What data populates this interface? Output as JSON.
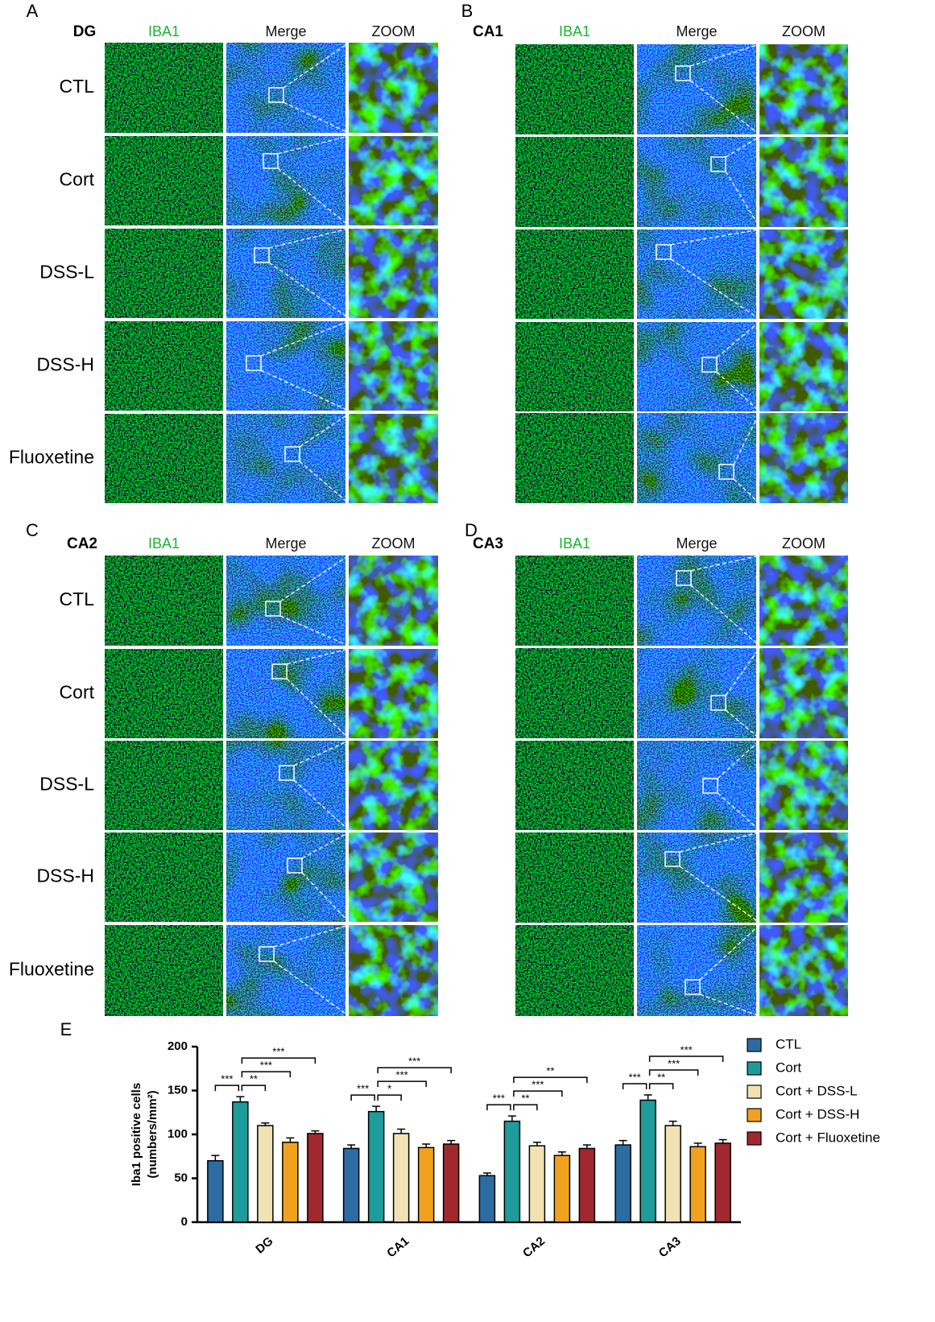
{
  "panels": [
    {
      "letter": "A",
      "region": "DG",
      "columns": [
        "IBA1",
        "Merge",
        "ZOOM"
      ],
      "rows": [
        "CTL",
        "Cort",
        "DSS-L",
        "DSS-H",
        "Fluoxetine"
      ]
    },
    {
      "letter": "B",
      "region": "CA1",
      "columns": [
        "IBA1",
        "Merge",
        "ZOOM"
      ]
    },
    {
      "letter": "C",
      "region": "CA2",
      "columns": [
        "IBA1",
        "Merge",
        "ZOOM"
      ],
      "rows": [
        "CTL",
        "Cort",
        "DSS-L",
        "DSS-H",
        "Fluoxetine"
      ]
    },
    {
      "letter": "D",
      "region": "CA3",
      "columns": [
        "IBA1",
        "Merge",
        "ZOOM"
      ]
    }
  ],
  "chart_data": {
    "type": "bar",
    "letter": "E",
    "y_label": "Iba1 positive cells",
    "y_label_unit": "(numbers/mm²)",
    "categories": [
      "DG",
      "CA1",
      "CA2",
      "CA3"
    ],
    "series": [
      {
        "name": "CTL",
        "color": "#2b6ca3",
        "values": [
          70,
          84,
          53,
          88
        ],
        "errors": [
          6,
          4,
          3,
          5
        ]
      },
      {
        "name": "Cort",
        "color": "#1e9b9b",
        "values": [
          137,
          126,
          115,
          139
        ],
        "errors": [
          6,
          6,
          6,
          6
        ]
      },
      {
        "name": "Cort + DSS-L",
        "color": "#f1e2b3",
        "values": [
          110,
          101,
          87,
          110
        ],
        "errors": [
          3,
          5,
          4,
          5
        ]
      },
      {
        "name": "Cort + DSS-H",
        "color": "#f0a21e",
        "values": [
          91,
          85,
          76,
          86
        ],
        "errors": [
          5,
          4,
          4,
          4
        ]
      },
      {
        "name": "Cort + Fluoxetine",
        "color": "#a1282e",
        "values": [
          101,
          89,
          84,
          90
        ],
        "errors": [
          3,
          4,
          4,
          4
        ]
      }
    ],
    "significance": [
      [
        "***",
        "**",
        "***",
        "***"
      ],
      [
        "***",
        "*",
        "***",
        "***"
      ],
      [
        "***",
        "**",
        "***",
        "**"
      ],
      [
        "***",
        "**",
        "***",
        "***"
      ]
    ],
    "ylim": [
      0,
      200
    ],
    "yticks": [
      0,
      50,
      100,
      150,
      200
    ]
  }
}
